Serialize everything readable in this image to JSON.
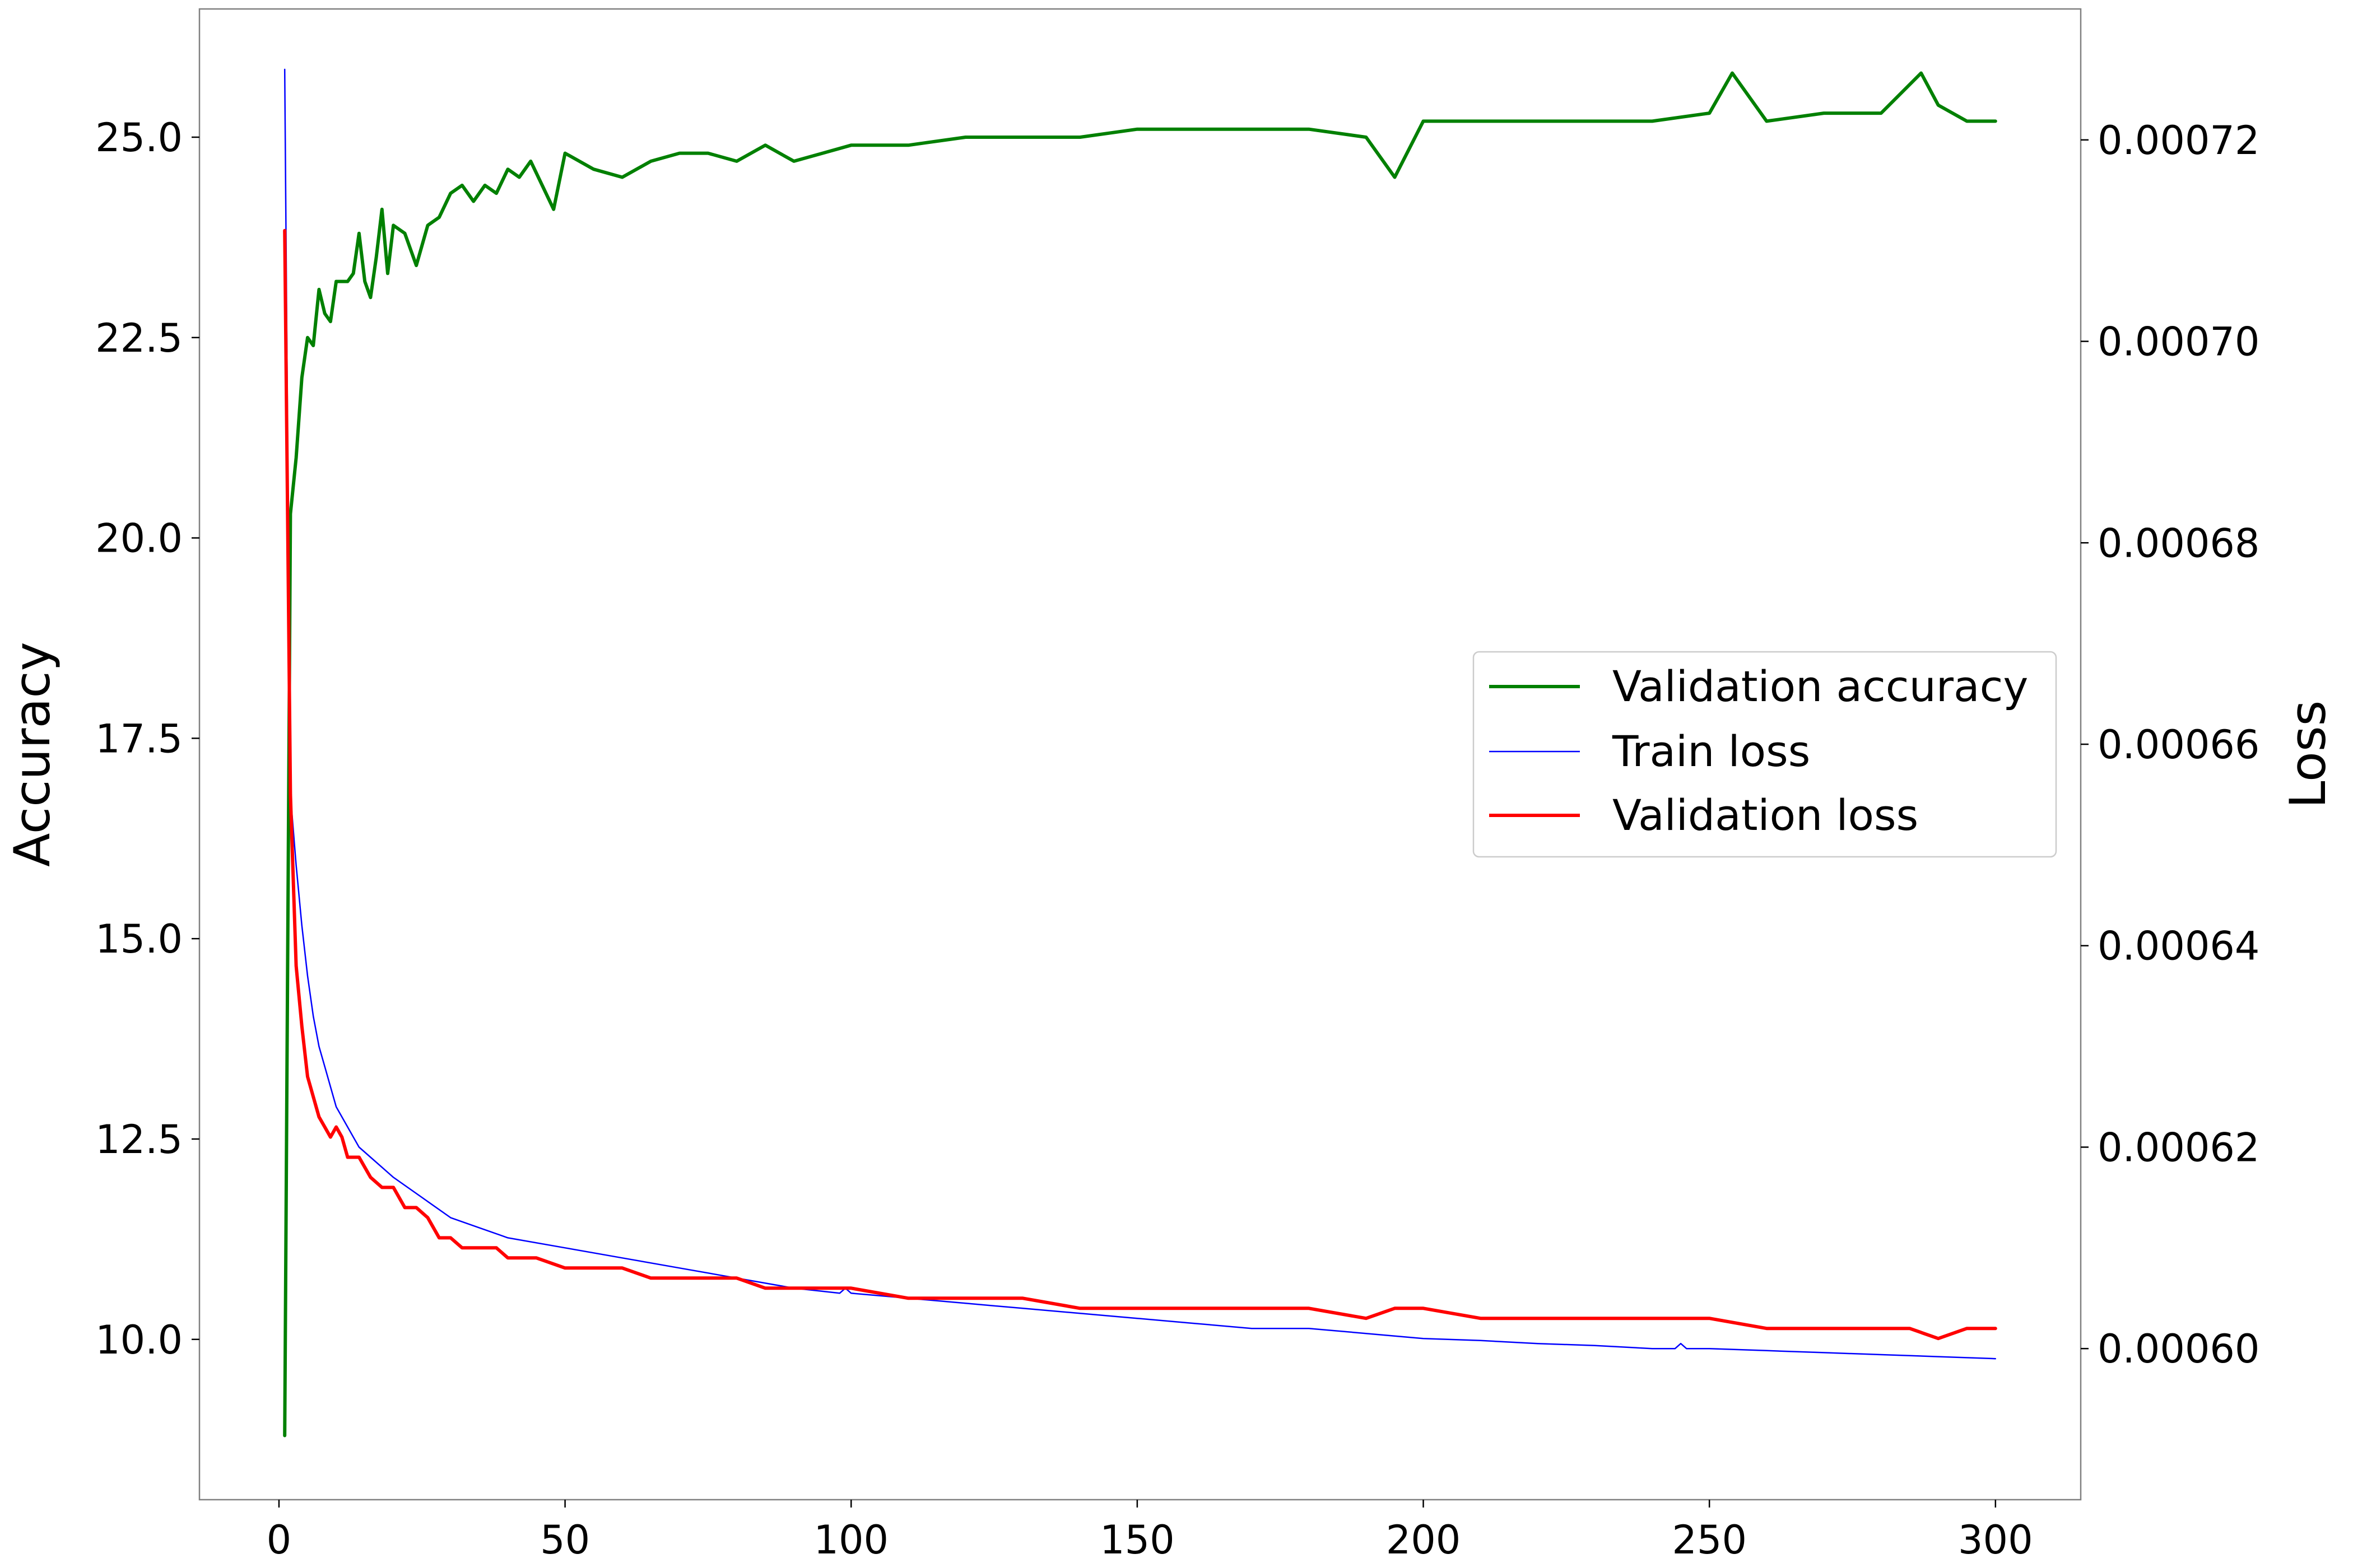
{
  "chart_data": {
    "type": "line",
    "xlabel": "",
    "ylabel_left": "Accuracy",
    "ylabel_right": "Loss",
    "xlim": [
      -13.9,
      314.9
    ],
    "ylim_left": [
      8.0,
      26.6
    ],
    "ylim_right": [
      0.000585,
      0.000733
    ],
    "x_ticks": [
      0,
      50,
      100,
      150,
      200,
      250,
      300
    ],
    "y_ticks_left": [
      10.0,
      12.5,
      15.0,
      17.5,
      20.0,
      22.5,
      25.0
    ],
    "y_ticks_right": [
      0.0006,
      0.00062,
      0.00064,
      0.00066,
      0.00068,
      0.0007,
      0.00072
    ],
    "grid": false,
    "legend_position": "center-right",
    "series": [
      {
        "name": "Validation accuracy",
        "axis": "left",
        "color": "#008000",
        "x": [
          1,
          2,
          3,
          4,
          5,
          6,
          7,
          8,
          9,
          10,
          11,
          12,
          13,
          14,
          15,
          16,
          17,
          18,
          19,
          20,
          22,
          24,
          26,
          28,
          30,
          32,
          34,
          36,
          38,
          40,
          42,
          44,
          46,
          48,
          50,
          55,
          60,
          65,
          70,
          75,
          80,
          85,
          90,
          95,
          100,
          110,
          120,
          130,
          140,
          150,
          160,
          170,
          180,
          190,
          195,
          200,
          210,
          220,
          230,
          240,
          250,
          254,
          260,
          270,
          280,
          287,
          290,
          295,
          300
        ],
        "values": [
          8.8,
          20.3,
          21.0,
          22.0,
          22.5,
          22.4,
          23.1,
          22.8,
          22.7,
          23.2,
          23.2,
          23.2,
          23.3,
          23.8,
          23.2,
          23.0,
          23.5,
          24.1,
          23.3,
          23.9,
          23.8,
          23.4,
          23.9,
          24.0,
          24.3,
          24.4,
          24.2,
          24.4,
          24.3,
          24.6,
          24.5,
          24.7,
          24.4,
          24.1,
          24.8,
          24.6,
          24.5,
          24.7,
          24.8,
          24.8,
          24.7,
          24.9,
          24.7,
          24.8,
          24.9,
          24.9,
          25.0,
          25.0,
          25.0,
          25.1,
          25.1,
          25.1,
          25.1,
          25.0,
          24.5,
          25.2,
          25.2,
          25.2,
          25.2,
          25.2,
          25.3,
          25.8,
          25.2,
          25.3,
          25.3,
          25.8,
          25.4,
          25.2,
          25.2
        ]
      },
      {
        "name": "Train loss",
        "axis": "right",
        "color": "#0000ff",
        "x": [
          1,
          2,
          3,
          4,
          5,
          6,
          7,
          8,
          9,
          10,
          12,
          14,
          16,
          18,
          20,
          25,
          30,
          35,
          40,
          50,
          60,
          70,
          80,
          90,
          98,
          99,
          100,
          110,
          120,
          130,
          140,
          150,
          160,
          170,
          180,
          190,
          200,
          210,
          220,
          230,
          240,
          244,
          245,
          246,
          250,
          260,
          270,
          280,
          290,
          300
        ],
        "values": [
          0.000727,
          0.000655,
          0.000648,
          0.000642,
          0.000637,
          0.000633,
          0.00063,
          0.000628,
          0.000626,
          0.000624,
          0.000622,
          0.00062,
          0.000619,
          0.000618,
          0.000617,
          0.000615,
          0.000613,
          0.000612,
          0.000611,
          0.00061,
          0.000609,
          0.000608,
          0.000607,
          0.000606,
          0.0006055,
          0.000606,
          0.0006055,
          0.000605,
          0.0006045,
          0.000604,
          0.0006035,
          0.000603,
          0.0006025,
          0.000602,
          0.000602,
          0.0006015,
          0.000601,
          0.0006008,
          0.0006005,
          0.0006003,
          0.0006,
          0.0006,
          0.0006005,
          0.0006,
          0.0006,
          0.0005998,
          0.0005996,
          0.0005994,
          0.0005992,
          0.000599
        ]
      },
      {
        "name": "Validation loss",
        "axis": "right",
        "color": "#ff0000",
        "x": [
          1,
          2,
          3,
          4,
          5,
          6,
          7,
          8,
          9,
          10,
          11,
          12,
          14,
          16,
          18,
          20,
          22,
          24,
          26,
          28,
          30,
          32,
          34,
          36,
          38,
          40,
          45,
          50,
          55,
          60,
          65,
          70,
          75,
          80,
          85,
          90,
          95,
          100,
          110,
          120,
          130,
          140,
          150,
          160,
          170,
          180,
          190,
          195,
          200,
          210,
          220,
          230,
          240,
          250,
          260,
          270,
          280,
          285,
          290,
          295,
          300
        ],
        "values": [
          0.000711,
          0.000655,
          0.000638,
          0.000632,
          0.000627,
          0.000625,
          0.000623,
          0.000622,
          0.000621,
          0.000622,
          0.000621,
          0.000619,
          0.000619,
          0.000617,
          0.000616,
          0.000616,
          0.000614,
          0.000614,
          0.000613,
          0.000611,
          0.000611,
          0.00061,
          0.00061,
          0.00061,
          0.00061,
          0.000609,
          0.000609,
          0.000608,
          0.000608,
          0.000608,
          0.000607,
          0.000607,
          0.000607,
          0.000607,
          0.000606,
          0.000606,
          0.000606,
          0.000606,
          0.000605,
          0.000605,
          0.000605,
          0.000604,
          0.000604,
          0.000604,
          0.000604,
          0.000604,
          0.000603,
          0.000604,
          0.000604,
          0.000603,
          0.000603,
          0.000603,
          0.000603,
          0.000603,
          0.000602,
          0.000602,
          0.000602,
          0.000602,
          0.000601,
          0.000602,
          0.000602
        ]
      }
    ]
  }
}
